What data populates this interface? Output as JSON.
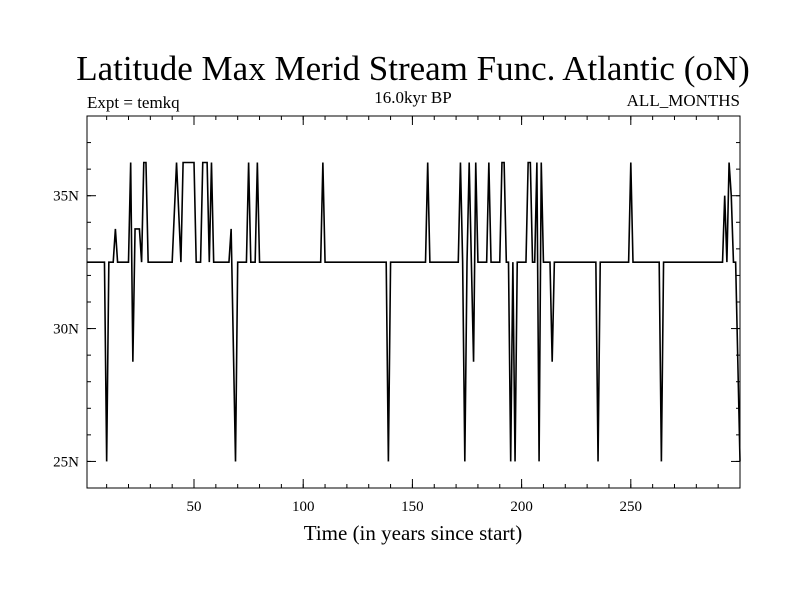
{
  "chart_data": {
    "type": "line",
    "title": "Latitude Max Merid Stream Func. Atlantic (oN)",
    "left_note": "Expt = temkq",
    "center_note": "16.0kyr BP",
    "right_note": "ALL_MONTHS",
    "xlabel": "Time (in years since start)",
    "ylabel": "",
    "xlim": [
      1,
      300
    ],
    "ylim": [
      24,
      38
    ],
    "x_ticks": [
      50,
      100,
      150,
      200,
      250
    ],
    "x_tick_labels": [
      "50",
      "100",
      "150",
      "200",
      "250"
    ],
    "y_ticks": [
      25,
      30,
      35
    ],
    "y_tick_labels": [
      "25N",
      "30N",
      "35N"
    ],
    "grid": false,
    "legend": "none",
    "series": [
      {
        "color": "#000000",
        "points": [
          [
            1,
            32.5
          ],
          [
            9,
            32.5
          ],
          [
            10,
            25
          ],
          [
            11,
            32.5
          ],
          [
            13,
            32.5
          ],
          [
            14,
            33.75
          ],
          [
            15,
            32.5
          ],
          [
            20,
            32.5
          ],
          [
            21,
            36.25
          ],
          [
            22,
            28.75
          ],
          [
            23,
            33.75
          ],
          [
            25,
            33.75
          ],
          [
            26,
            32.5
          ],
          [
            27,
            36.25
          ],
          [
            28,
            36.25
          ],
          [
            29,
            32.5
          ],
          [
            40,
            32.5
          ],
          [
            42,
            36.25
          ],
          [
            44,
            32.5
          ],
          [
            45,
            36.25
          ],
          [
            50,
            36.25
          ],
          [
            51,
            32.5
          ],
          [
            53,
            32.5
          ],
          [
            54,
            36.25
          ],
          [
            56,
            36.25
          ],
          [
            57,
            32.5
          ],
          [
            58,
            36.25
          ],
          [
            59,
            32.5
          ],
          [
            66,
            32.5
          ],
          [
            67,
            33.75
          ],
          [
            69,
            25
          ],
          [
            70,
            32.5
          ],
          [
            74,
            32.5
          ],
          [
            75,
            36.25
          ],
          [
            76,
            32.5
          ],
          [
            78,
            32.5
          ],
          [
            79,
            36.25
          ],
          [
            80,
            32.5
          ],
          [
            108,
            32.5
          ],
          [
            109,
            36.25
          ],
          [
            110,
            32.5
          ],
          [
            138,
            32.5
          ],
          [
            139,
            25
          ],
          [
            140,
            32.5
          ],
          [
            156,
            32.5
          ],
          [
            157,
            36.25
          ],
          [
            158,
            32.5
          ],
          [
            171,
            32.5
          ],
          [
            172,
            36.25
          ],
          [
            173,
            32.5
          ],
          [
            174,
            25
          ],
          [
            175,
            32.5
          ],
          [
            176,
            36.25
          ],
          [
            177,
            32.5
          ],
          [
            178,
            28.75
          ],
          [
            179,
            36.25
          ],
          [
            180,
            32.5
          ],
          [
            184,
            32.5
          ],
          [
            185,
            36.25
          ],
          [
            186,
            32.5
          ],
          [
            190,
            32.5
          ],
          [
            191,
            36.25
          ],
          [
            192,
            36.25
          ],
          [
            193,
            32.5
          ],
          [
            194,
            32.5
          ],
          [
            195,
            25
          ],
          [
            196,
            32.5
          ],
          [
            197,
            25
          ],
          [
            198,
            32.5
          ],
          [
            202,
            32.5
          ],
          [
            203,
            36.25
          ],
          [
            204,
            36.25
          ],
          [
            205,
            32.5
          ],
          [
            206,
            32.5
          ],
          [
            207,
            36.25
          ],
          [
            208,
            25
          ],
          [
            209,
            36.25
          ],
          [
            210,
            32.5
          ],
          [
            213,
            32.5
          ],
          [
            214,
            28.75
          ],
          [
            215,
            32.5
          ],
          [
            234,
            32.5
          ],
          [
            235,
            25
          ],
          [
            236,
            32.5
          ],
          [
            249,
            32.5
          ],
          [
            250,
            36.25
          ],
          [
            251,
            32.5
          ],
          [
            263,
            32.5
          ],
          [
            264,
            25
          ],
          [
            265,
            32.5
          ],
          [
            292,
            32.5
          ],
          [
            293,
            35
          ],
          [
            294,
            32.5
          ],
          [
            295,
            36.25
          ],
          [
            296,
            35
          ],
          [
            297,
            32.5
          ],
          [
            298,
            32.5
          ],
          [
            299,
            28.75
          ],
          [
            300,
            25
          ]
        ]
      }
    ]
  }
}
